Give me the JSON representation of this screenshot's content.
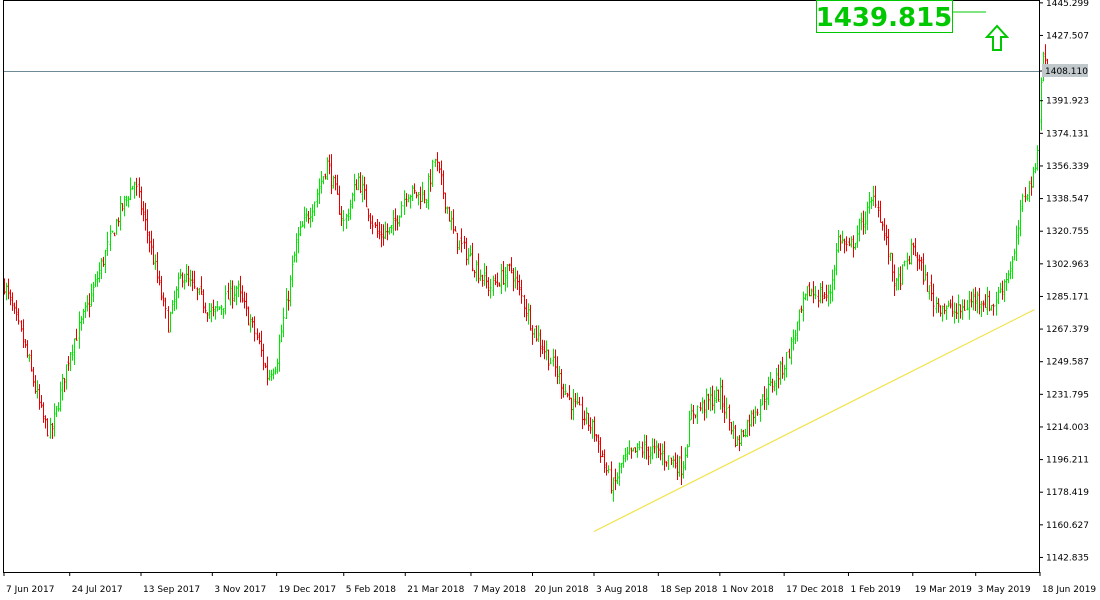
{
  "colors": {
    "background": "#ffffff",
    "frame": "#000000",
    "bull_bar": "#00e600",
    "bear_bar": "#e60000",
    "trendline": "#f2e24a",
    "price_line": "#6e8a96",
    "callout": "#00c800",
    "price_tag_bg": "#c0c8cc"
  },
  "price_callout": {
    "value": "1439.815",
    "arrow_icon": "up-arrow-icon"
  },
  "current_price_tag": "1408.110",
  "chart_data": {
    "type": "ohlc-bar",
    "title": "",
    "xlabel": "",
    "ylabel": "",
    "ylim": [
      1134.9,
      1446.3
    ],
    "grid": false,
    "y_ticks": [
      "1445.299",
      "1427.507",
      "1408.110",
      "1391.923",
      "1374.131",
      "1356.339",
      "1338.547",
      "1320.755",
      "1302.963",
      "1285.171",
      "1267.379",
      "1249.587",
      "1231.795",
      "1214.003",
      "1196.211",
      "1178.419",
      "1160.627",
      "1142.835"
    ],
    "x_tick_labels": [
      "7 Jun 2017",
      "24 Jul 2017",
      "13 Sep 2017",
      "3 Nov 2017",
      "19 Dec 2017",
      "5 Feb 2018",
      "21 Mar 2018",
      "7 May 2018",
      "20 Jun 2018",
      "3 Aug 2018",
      "18 Sep 2018",
      "1 Nov 2018",
      "17 Dec 2018",
      "1 Feb 2019",
      "19 Mar 2019",
      "3 May 2019",
      "18 Jun 2019"
    ],
    "current_price": 1408.11,
    "trendline": {
      "from": {
        "date": "3 Aug 2018",
        "price": 1157
      },
      "to": {
        "date": "14 Jun 2019",
        "price": 1278
      }
    },
    "price_path": [
      [
        "7 Jun 2017",
        1292
      ],
      [
        "20 Jun 2017",
        1262
      ],
      [
        "5 Jul 2017",
        1218
      ],
      [
        "10 Jul 2017",
        1210
      ],
      [
        "24 Jul 2017",
        1255
      ],
      [
        "8 Aug 2017",
        1285
      ],
      [
        "28 Aug 2017",
        1330
      ],
      [
        "8 Sep 2017",
        1348
      ],
      [
        "18 Sep 2017",
        1318
      ],
      [
        "2 Oct 2017",
        1270
      ],
      [
        "12 Oct 2017",
        1298
      ],
      [
        "3 Nov 2017",
        1275
      ],
      [
        "20 Nov 2017",
        1290
      ],
      [
        "5 Dec 2017",
        1262
      ],
      [
        "12 Dec 2017",
        1242
      ],
      [
        "19 Dec 2017",
        1250
      ],
      [
        "2 Jan 2018",
        1315
      ],
      [
        "15 Jan 2018",
        1338
      ],
      [
        "24 Jan 2018",
        1358
      ],
      [
        "5 Feb 2018",
        1325
      ],
      [
        "15 Feb 2018",
        1350
      ],
      [
        "1 Mar 2018",
        1318
      ],
      [
        "12 Mar 2018",
        1322
      ],
      [
        "21 Mar 2018",
        1342
      ],
      [
        "5 Apr 2018",
        1340
      ],
      [
        "11 Apr 2018",
        1360
      ],
      [
        "25 Apr 2018",
        1318
      ],
      [
        "7 May 2018",
        1305
      ],
      [
        "20 May 2018",
        1290
      ],
      [
        "5 Jun 2018",
        1300
      ],
      [
        "20 Jun 2018",
        1268
      ],
      [
        "3 Jul 2018",
        1250
      ],
      [
        "17 Jul 2018",
        1228
      ],
      [
        "3 Aug 2018",
        1212
      ],
      [
        "16 Aug 2018",
        1180
      ],
      [
        "23 Aug 2018",
        1195
      ],
      [
        "5 Sep 2018",
        1202
      ],
      [
        "18 Sep 2018",
        1200
      ],
      [
        "5 Oct 2018",
        1192
      ],
      [
        "12 Oct 2018",
        1222
      ],
      [
        "1 Nov 2018",
        1232
      ],
      [
        "13 Nov 2018",
        1205
      ],
      [
        "25 Nov 2018",
        1222
      ],
      [
        "17 Dec 2018",
        1248
      ],
      [
        "3 Jan 2019",
        1288
      ],
      [
        "18 Jan 2019",
        1285
      ],
      [
        "25 Jan 2019",
        1318
      ],
      [
        "1 Feb 2019",
        1310
      ],
      [
        "20 Feb 2019",
        1340
      ],
      [
        "7 Mar 2019",
        1290
      ],
      [
        "19 Mar 2019",
        1312
      ],
      [
        "3 Apr 2019",
        1282
      ],
      [
        "20 Apr 2019",
        1276
      ],
      [
        "3 May 2019",
        1285
      ],
      [
        "15 May 2019",
        1280
      ],
      [
        "30 May 2019",
        1305
      ],
      [
        "6 Jun 2019",
        1340
      ],
      [
        "14 Jun 2019",
        1352
      ],
      [
        "18 Jun 2019",
        1390
      ],
      [
        "20 Jun 2019",
        1418
      ],
      [
        "24 Jun 2019",
        1408
      ]
    ]
  }
}
